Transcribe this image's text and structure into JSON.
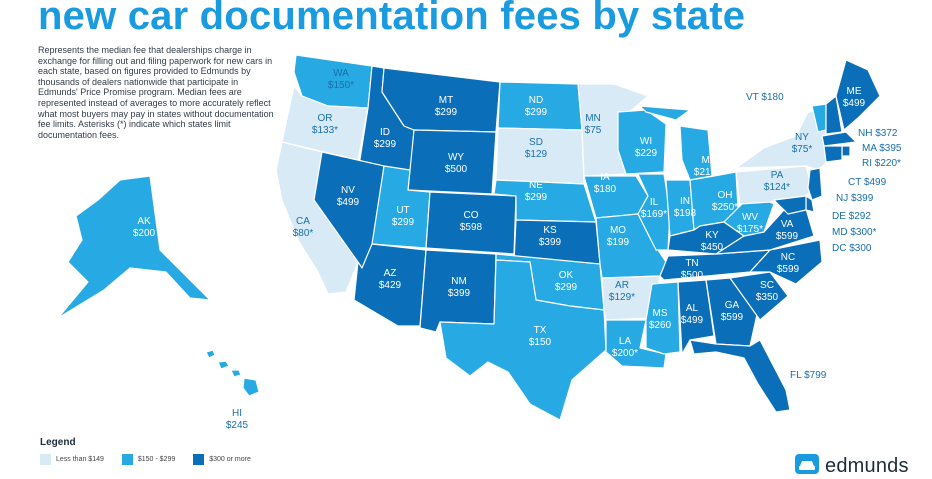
{
  "title": "new car documentation fees by state",
  "description": "Represents the median fee that dealerships charge in exchange for filling out and filing paperwork for new cars in each state, based on figures provided to Edmunds by thousands of dealers nationwide that participate in Edmunds' Price Promise program. Median fees are represented instead of averages to more accurately reflect what most buyers may pay in states without documentation fee limits. Asterisks (*) indicate which states limit documentation fees.",
  "colors": {
    "light": "#d8eaf6",
    "mid": "#27aae4",
    "dark": "#0a6fb8",
    "title": "#1a9be0"
  },
  "states": {
    "WA": {
      "name": "WA",
      "fee": "$150*"
    },
    "OR": {
      "name": "OR",
      "fee": "$133*"
    },
    "CA": {
      "name": "CA",
      "fee": "$80*"
    },
    "ID": {
      "name": "ID",
      "fee": "$299"
    },
    "NV": {
      "name": "NV",
      "fee": "$499"
    },
    "MT": {
      "name": "MT",
      "fee": "$299"
    },
    "WY": {
      "name": "WY",
      "fee": "$500"
    },
    "UT": {
      "name": "UT",
      "fee": "$299"
    },
    "CO": {
      "name": "CO",
      "fee": "$598"
    },
    "AZ": {
      "name": "AZ",
      "fee": "$429"
    },
    "NM": {
      "name": "NM",
      "fee": "$399"
    },
    "ND": {
      "name": "ND",
      "fee": "$299"
    },
    "SD": {
      "name": "SD",
      "fee": "$129"
    },
    "NE": {
      "name": "NE",
      "fee": "$299"
    },
    "KS": {
      "name": "KS",
      "fee": "$399"
    },
    "OK": {
      "name": "OK",
      "fee": "$299"
    },
    "TX": {
      "name": "TX",
      "fee": "$150"
    },
    "MN": {
      "name": "MN",
      "fee": "$75"
    },
    "IA": {
      "name": "IA",
      "fee": "$180"
    },
    "MO": {
      "name": "MO",
      "fee": "$199"
    },
    "AR": {
      "name": "AR",
      "fee": "$129*"
    },
    "LA": {
      "name": "LA",
      "fee": "$200*"
    },
    "WI": {
      "name": "WI",
      "fee": "$229"
    },
    "IL": {
      "name": "IL",
      "fee": "$169*"
    },
    "MI": {
      "name": "MI",
      "fee": "$210*"
    },
    "IN": {
      "name": "IN",
      "fee": "$198"
    },
    "OH": {
      "name": "OH",
      "fee": "$250*"
    },
    "KY": {
      "name": "KY",
      "fee": "$450"
    },
    "TN": {
      "name": "TN",
      "fee": "$500"
    },
    "MS": {
      "name": "MS",
      "fee": "$260"
    },
    "AL": {
      "name": "AL",
      "fee": "$499"
    },
    "GA": {
      "name": "GA",
      "fee": "$599"
    },
    "FL": {
      "name": "FL",
      "fee": "$799"
    },
    "SC": {
      "name": "SC",
      "fee": "$350"
    },
    "NC": {
      "name": "NC",
      "fee": "$599"
    },
    "VA": {
      "name": "VA",
      "fee": "$599"
    },
    "WV": {
      "name": "WV",
      "fee": "$175*"
    },
    "PA": {
      "name": "PA",
      "fee": "$124*"
    },
    "NY": {
      "name": "NY",
      "fee": "$75*"
    },
    "VT": {
      "name": "VT",
      "fee": "$180"
    },
    "ME": {
      "name": "ME",
      "fee": "$499"
    },
    "NH": {
      "name": "NH",
      "fee": "$372"
    },
    "MA": {
      "name": "MA",
      "fee": "$395"
    },
    "RI": {
      "name": "RI",
      "fee": "$220*"
    },
    "CT": {
      "name": "CT",
      "fee": "$499"
    },
    "NJ": {
      "name": "NJ",
      "fee": "$399"
    },
    "DE": {
      "name": "DE",
      "fee": "$292"
    },
    "MD": {
      "name": "MD",
      "fee": "$300*"
    },
    "DC": {
      "name": "DC",
      "fee": "$300"
    },
    "AK": {
      "name": "AK",
      "fee": "$200"
    },
    "HI": {
      "name": "HI",
      "fee": "$245"
    }
  },
  "legend": {
    "title": "Legend",
    "items": [
      {
        "label": "Less than $149",
        "color": "#d8eaf6"
      },
      {
        "label": "$150 - $299",
        "color": "#27aae4"
      },
      {
        "label": "$300 or more",
        "color": "#0a6fb8"
      }
    ]
  },
  "brand": {
    "name": "edmunds",
    "icon": "car-icon"
  }
}
